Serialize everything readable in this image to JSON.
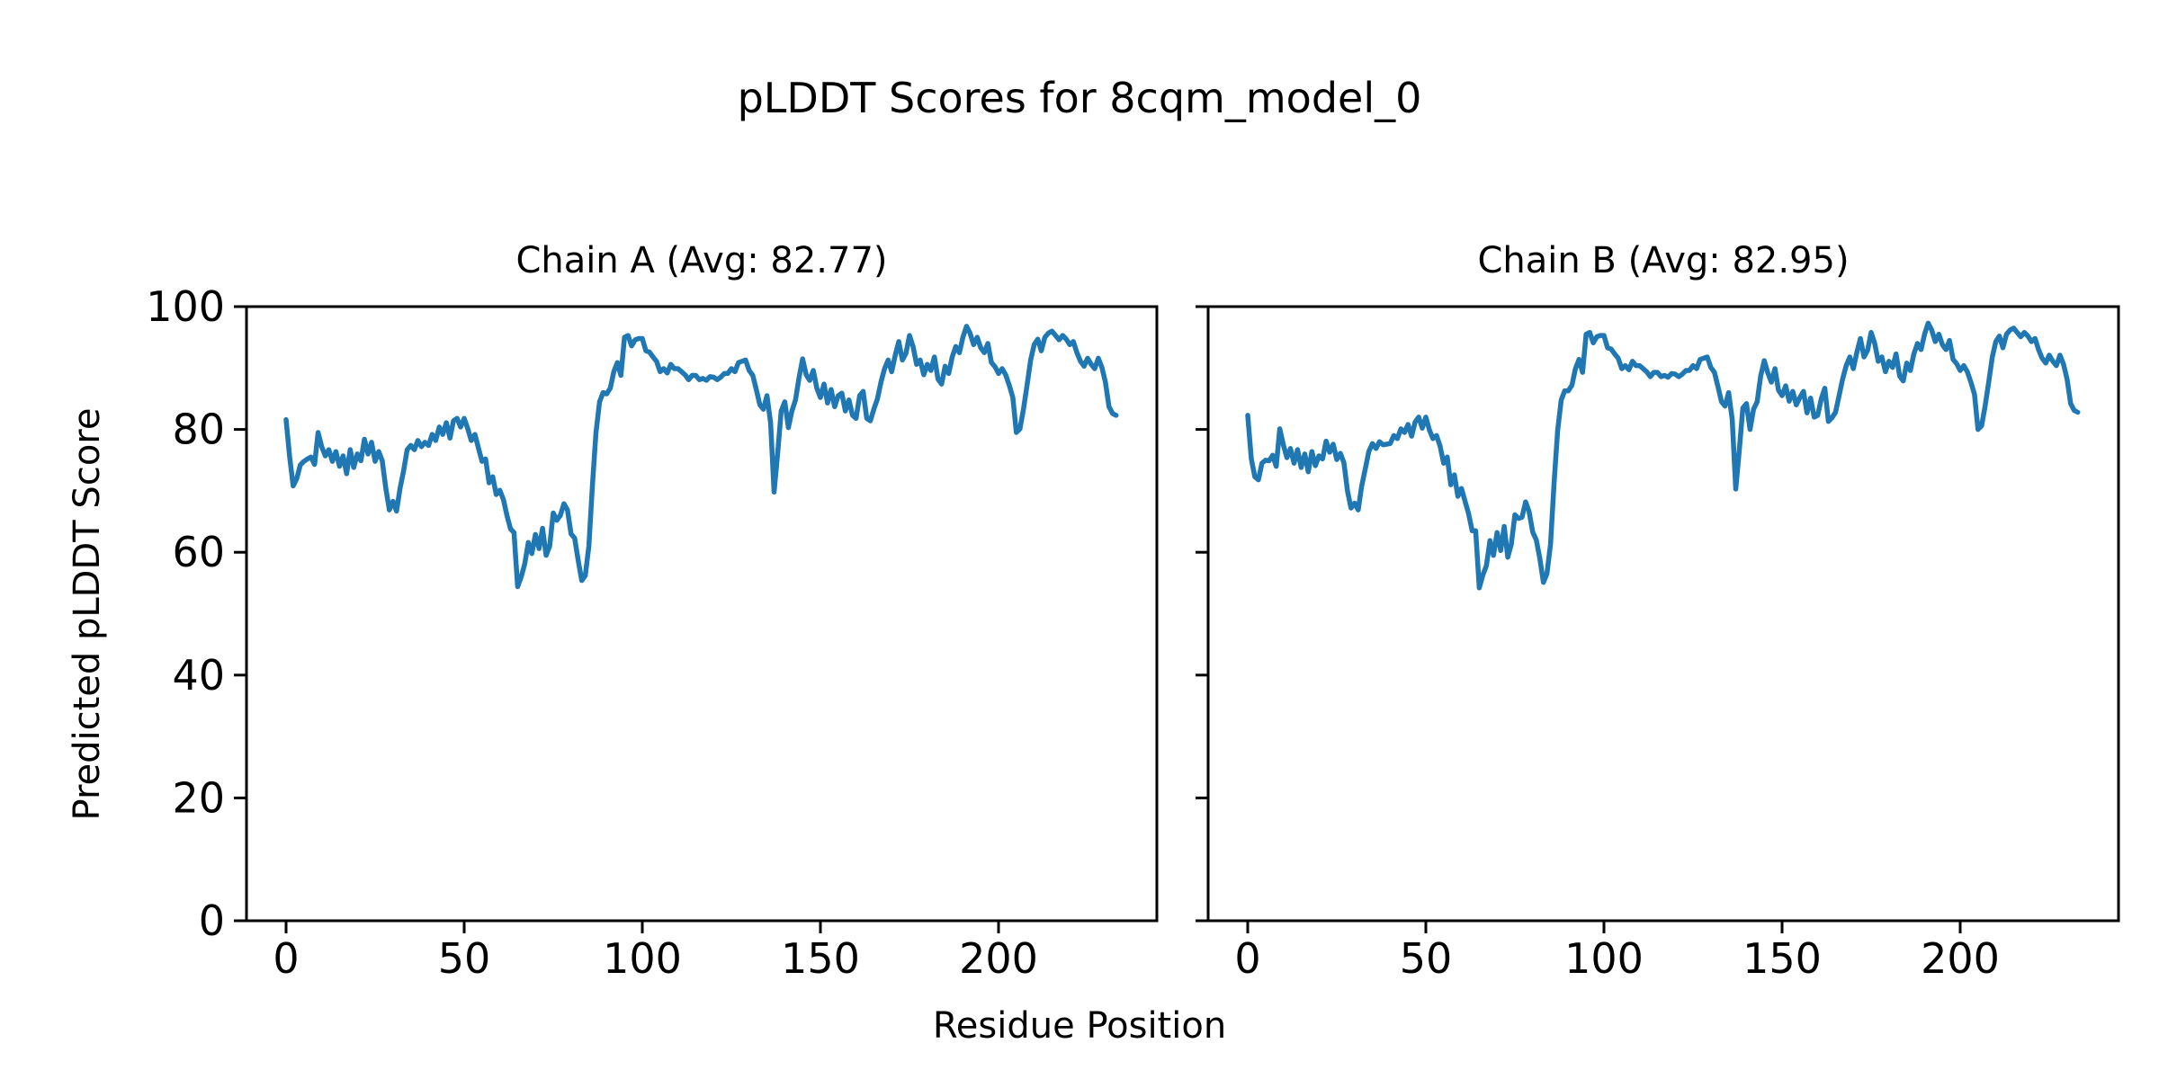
{
  "figure": {
    "suptitle": "pLDDT Scores for 8cqm_model_0",
    "xlabel": "Residue Position",
    "ylabel": "Predicted pLDDT Score",
    "background": "#ffffff",
    "text_color": "#000000",
    "spine_color": "#000000"
  },
  "chart_data": [
    {
      "type": "line",
      "title": "Chain A (Avg: 82.77)",
      "avg_label": "82.77",
      "chain": "A",
      "xlabel": "Residue Position",
      "ylabel": "Predicted pLDDT Score",
      "xlim": [
        -11.11,
        244.44
      ],
      "ylim": [
        0,
        100
      ],
      "xticks": [
        0,
        50,
        100,
        150,
        200
      ],
      "yticks": [
        0,
        20,
        40,
        60,
        80,
        100
      ],
      "show_ytick_labels": true,
      "grid": false,
      "legend": "none",
      "series": [
        {
          "name": "Chain A pLDDT",
          "color": "#1f77b4",
          "x_start": 0,
          "x_step": 1,
          "values": [
            81.6,
            75.5,
            70.8,
            72.0,
            74.2,
            74.8,
            75.2,
            75.5,
            74.3,
            79.5,
            77.2,
            75.7,
            76.7,
            74.8,
            76.4,
            74.0,
            75.7,
            72.8,
            76.7,
            73.8,
            76.0,
            74.9,
            78.4,
            76.0,
            77.9,
            74.8,
            76.4,
            74.9,
            70.4,
            66.9,
            68.3,
            66.7,
            70.4,
            73.3,
            76.7,
            77.4,
            76.7,
            78.2,
            77.2,
            77.9,
            77.4,
            79.2,
            78.2,
            80.4,
            79.2,
            81.1,
            78.6,
            81.4,
            81.8,
            80.4,
            81.8,
            80.1,
            78.2,
            79.2,
            77.0,
            74.8,
            75.2,
            71.3,
            72.3,
            69.4,
            70.1,
            68.6,
            66.0,
            63.8,
            63.2,
            54.4,
            56.0,
            58.1,
            61.6,
            59.8,
            62.9,
            60.6,
            63.9,
            59.5,
            61.0,
            66.4,
            65.2,
            66.0,
            67.9,
            66.9,
            63.0,
            62.3,
            58.7,
            55.4,
            56.2,
            61.0,
            71.0,
            79.5,
            84.5,
            86.0,
            85.8,
            86.7,
            89.4,
            90.9,
            88.8,
            95.0,
            95.3,
            93.6,
            94.6,
            94.8,
            94.8,
            92.8,
            92.6,
            91.8,
            91.1,
            89.4,
            89.9,
            89.2,
            90.6,
            89.9,
            89.9,
            89.4,
            88.9,
            88.1,
            88.8,
            88.8,
            88.1,
            88.3,
            88.0,
            88.6,
            88.5,
            88.1,
            88.5,
            89.1,
            89.1,
            89.9,
            89.4,
            90.9,
            91.1,
            91.3,
            89.6,
            88.8,
            86.5,
            84.0,
            83.3,
            85.5,
            81.1,
            69.8,
            76.2,
            83.0,
            84.5,
            80.3,
            83.0,
            84.8,
            88.4,
            91.5,
            88.9,
            88.0,
            89.6,
            86.7,
            85.2,
            87.4,
            84.3,
            86.5,
            83.7,
            85.5,
            85.9,
            83.0,
            84.8,
            82.3,
            81.8,
            85.5,
            86.2,
            81.8,
            81.4,
            83.3,
            85.0,
            87.7,
            89.9,
            91.3,
            89.4,
            92.1,
            94.3,
            91.3,
            92.4,
            95.3,
            93.5,
            90.6,
            91.3,
            88.9,
            90.6,
            89.6,
            91.8,
            88.2,
            87.4,
            90.3,
            89.1,
            91.8,
            93.5,
            92.5,
            95.0,
            96.8,
            95.7,
            93.8,
            95.0,
            93.3,
            92.5,
            94.0,
            90.9,
            90.2,
            89.1,
            89.9,
            88.9,
            87.2,
            85.2,
            79.5,
            80.1,
            83.3,
            87.2,
            91.3,
            93.8,
            94.7,
            92.8,
            95.0,
            95.7,
            96.0,
            95.3,
            94.6,
            95.3,
            94.7,
            93.8,
            94.3,
            92.5,
            91.1,
            90.3,
            91.6,
            90.6,
            89.9,
            91.6,
            90.1,
            87.7,
            83.7,
            82.6,
            82.3
          ]
        }
      ]
    },
    {
      "type": "line",
      "title": "Chain B (Avg: 82.95)",
      "avg_label": "82.95",
      "chain": "B",
      "xlabel": "Residue Position",
      "ylabel": "Predicted pLDDT Score",
      "xlim": [
        -11.11,
        244.44
      ],
      "ylim": [
        0,
        100
      ],
      "xticks": [
        0,
        50,
        100,
        150,
        200
      ],
      "yticks": [
        0,
        20,
        40,
        60,
        80,
        100
      ],
      "show_ytick_labels": false,
      "grid": false,
      "legend": "none",
      "series": [
        {
          "name": "Chain B pLDDT",
          "color": "#1f77b4",
          "x_start": 0,
          "x_step": 1,
          "values": [
            82.3,
            75.2,
            72.3,
            71.8,
            74.5,
            75.0,
            74.9,
            75.8,
            74.0,
            80.1,
            77.5,
            75.4,
            76.9,
            74.5,
            76.7,
            73.8,
            76.0,
            73.1,
            76.4,
            74.1,
            75.7,
            75.2,
            78.1,
            76.3,
            77.6,
            75.1,
            76.1,
            74.6,
            70.0,
            67.2,
            68.0,
            66.9,
            70.8,
            73.6,
            76.4,
            77.7,
            76.9,
            78.0,
            77.5,
            77.6,
            77.7,
            79.0,
            78.5,
            80.1,
            79.5,
            80.8,
            78.9,
            81.2,
            82.0,
            80.2,
            82.0,
            79.9,
            78.5,
            79.0,
            77.3,
            74.5,
            75.5,
            71.0,
            72.6,
            69.1,
            70.4,
            68.3,
            66.3,
            63.5,
            63.5,
            54.2,
            56.3,
            57.8,
            61.9,
            59.5,
            63.2,
            60.3,
            64.2,
            59.2,
            61.3,
            66.1,
            65.5,
            65.7,
            68.2,
            66.6,
            63.3,
            62.0,
            59.0,
            55.1,
            56.5,
            61.3,
            71.4,
            79.8,
            84.8,
            86.3,
            86.3,
            87.2,
            89.9,
            91.4,
            89.3,
            95.5,
            95.8,
            94.1,
            95.1,
            95.3,
            95.3,
            93.3,
            93.1,
            92.3,
            91.6,
            89.9,
            90.4,
            89.7,
            91.1,
            90.4,
            90.4,
            89.9,
            89.4,
            88.6,
            89.3,
            89.3,
            88.6,
            88.8,
            88.5,
            89.1,
            89.0,
            88.6,
            89.0,
            89.6,
            89.6,
            90.4,
            89.9,
            91.4,
            91.6,
            91.8,
            90.1,
            89.3,
            87.0,
            84.5,
            83.8,
            86.0,
            81.6,
            70.3,
            76.7,
            83.5,
            84.2,
            80.0,
            83.3,
            84.5,
            88.7,
            91.2,
            89.2,
            87.7,
            89.9,
            86.4,
            85.5,
            87.1,
            84.6,
            86.2,
            84.0,
            85.2,
            86.2,
            82.7,
            85.1,
            82.0,
            82.3,
            85.0,
            86.7,
            81.3,
            81.9,
            82.8,
            85.5,
            88.2,
            90.4,
            91.8,
            89.9,
            92.6,
            94.8,
            91.8,
            92.9,
            95.8,
            94.0,
            91.1,
            91.8,
            89.4,
            91.1,
            90.1,
            92.3,
            88.7,
            87.9,
            90.8,
            89.6,
            92.3,
            94.0,
            93.0,
            95.5,
            97.3,
            96.2,
            94.3,
            95.5,
            93.8,
            93.0,
            94.5,
            91.4,
            90.7,
            89.6,
            90.4,
            89.4,
            87.7,
            85.7,
            80.0,
            80.6,
            83.8,
            87.7,
            91.8,
            94.3,
            95.2,
            93.3,
            95.5,
            96.2,
            96.5,
            95.8,
            95.1,
            95.8,
            95.2,
            94.3,
            94.8,
            93.0,
            91.6,
            90.8,
            92.1,
            91.1,
            90.4,
            92.1,
            90.6,
            88.2,
            84.2,
            83.1,
            82.8
          ]
        }
      ]
    }
  ],
  "layout_note": "two line subplots sharing y axis, no grid, no legend"
}
